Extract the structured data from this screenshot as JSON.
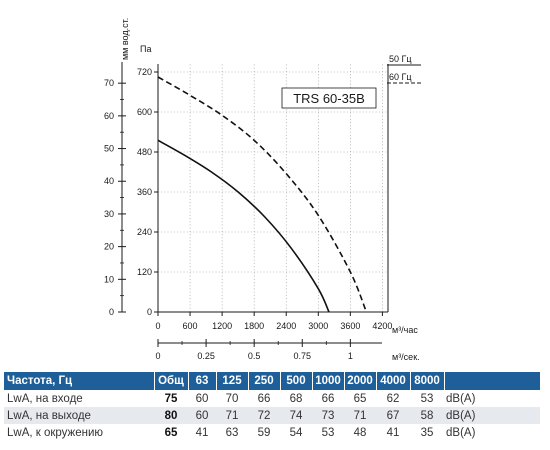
{
  "chart_data": {
    "type": "line",
    "model": "TRS 60-35B",
    "y_left_unit": "мм вод.ст.",
    "y_left_ticks": [
      "0",
      "10",
      "20",
      "30",
      "40",
      "50",
      "60",
      "70"
    ],
    "y_right_unit": "Па",
    "y_right_ticks": [
      "0",
      "120",
      "240",
      "360",
      "480",
      "600",
      "720"
    ],
    "x_top_unit": "м³/час",
    "x_top_ticks": [
      "0",
      "600",
      "1200",
      "1800",
      "2400",
      "3000",
      "3600",
      "4200"
    ],
    "x_bottom_unit": "м³/сек.",
    "x_bottom_ticks": [
      "0",
      "0.25",
      "0.5",
      "0.75",
      "1"
    ],
    "xlim": [
      0,
      4200
    ],
    "ylim": [
      0,
      720
    ],
    "grid": true,
    "legend": [
      {
        "label": "50 Гц",
        "style": "solid"
      },
      {
        "label": "60 Гц",
        "style": "dashed"
      }
    ],
    "series": [
      {
        "frequency": "50 Гц",
        "style": "solid",
        "x": [
          0,
          500,
          1000,
          1500,
          2000,
          2500,
          3000,
          3200
        ],
        "y": [
          515,
          470,
          420,
          360,
          285,
          190,
          70,
          0
        ]
      },
      {
        "frequency": "60 Гц",
        "style": "dashed",
        "x": [
          0,
          600,
          1200,
          1800,
          2400,
          3000,
          3600,
          3900
        ],
        "y": [
          705,
          650,
          590,
          515,
          415,
          290,
          120,
          0
        ]
      }
    ]
  },
  "table": {
    "headers": [
      "Частота, Гц",
      "Общ",
      "63",
      "125",
      "250",
      "500",
      "1000",
      "2000",
      "4000",
      "8000",
      ""
    ],
    "rows": [
      {
        "label": "LwA, на входе",
        "total": "75",
        "values": [
          "60",
          "70",
          "66",
          "68",
          "66",
          "65",
          "62",
          "53"
        ],
        "unit": "dB(A)"
      },
      {
        "label": "LwA, на выходе",
        "total": "80",
        "values": [
          "60",
          "71",
          "72",
          "74",
          "73",
          "71",
          "67",
          "58"
        ],
        "unit": "dB(A)"
      },
      {
        "label": "LwA, к окружению",
        "total": "65",
        "values": [
          "41",
          "63",
          "59",
          "54",
          "53",
          "48",
          "41",
          "35"
        ],
        "unit": "dB(A)"
      }
    ]
  }
}
